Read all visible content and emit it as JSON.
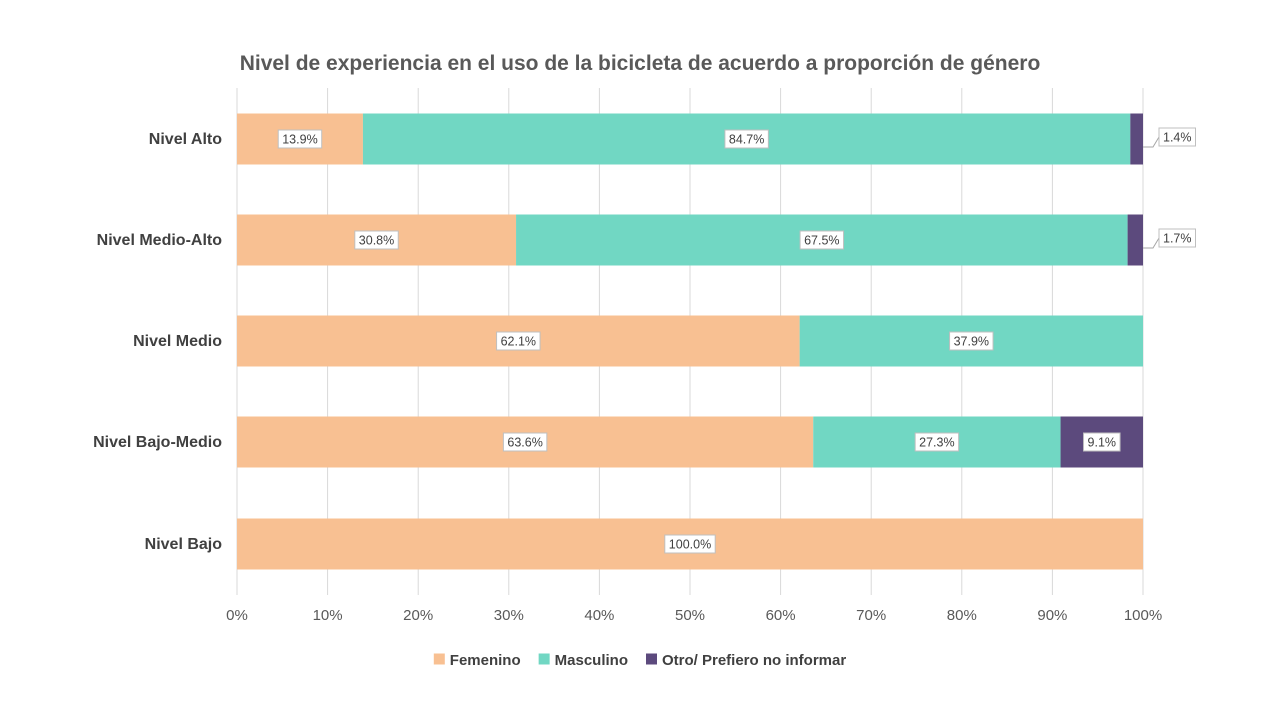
{
  "chart_data": {
    "type": "bar",
    "orientation": "horizontal",
    "stacked": true,
    "normalized": true,
    "title": "Nivel de experiencia en el uso de la bicicleta de acuerdo a proporción de género",
    "categories": [
      "Nivel Alto",
      "Nivel Medio-Alto",
      "Nivel Medio",
      "Nivel Bajo-Medio",
      "Nivel Bajo"
    ],
    "series": [
      {
        "name": "Femenino",
        "color": "#F8C092",
        "values": [
          13.9,
          30.8,
          62.1,
          63.6,
          100.0
        ],
        "labels": [
          "13.9%",
          "30.8%",
          "62.1%",
          "63.6%",
          "100.0%"
        ]
      },
      {
        "name": "Masculino",
        "color": "#71D7C3",
        "values": [
          84.7,
          67.5,
          37.9,
          27.3,
          0
        ],
        "labels": [
          "84.7%",
          "67.5%",
          "37.9%",
          "27.3%",
          ""
        ]
      },
      {
        "name": "Otro/ Prefiero no informar",
        "color": "#5C4A7D",
        "values": [
          1.4,
          1.7,
          0,
          9.1,
          0
        ],
        "labels": [
          "1.4%",
          "1.7%",
          "",
          "9.1%",
          ""
        ]
      }
    ],
    "xlim": [
      0,
      100
    ],
    "xticks": [
      "0%",
      "10%",
      "20%",
      "30%",
      "40%",
      "50%",
      "60%",
      "70%",
      "80%",
      "90%",
      "100%"
    ],
    "grid": true,
    "legend_position": "bottom",
    "gridline_color": "#D9D9D9"
  }
}
